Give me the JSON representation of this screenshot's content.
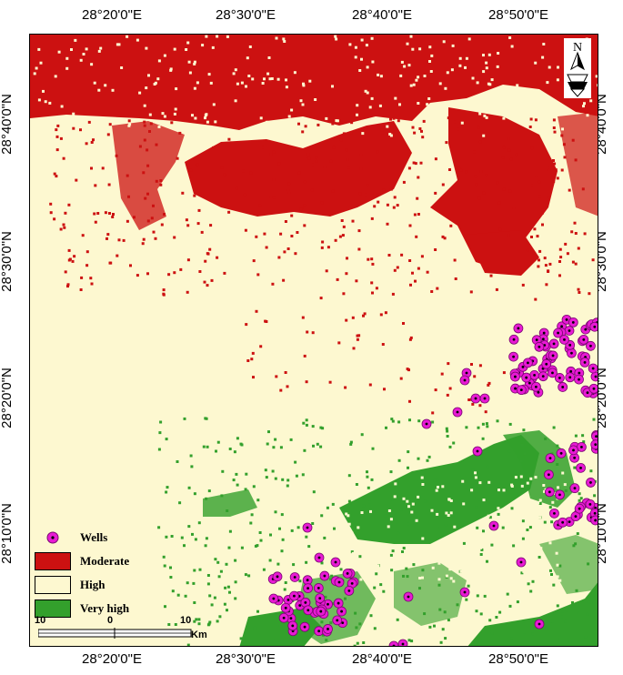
{
  "map": {
    "x_ticks": [
      "28°20'0\"E",
      "28°30'0\"E",
      "28°40'0\"E",
      "28°50'0\"E"
    ],
    "y_ticks": [
      "28°40'0\"N",
      "28°30'0\"N",
      "28°20'0\"N",
      "28°10'0\"N"
    ]
  },
  "legend": {
    "items": [
      {
        "label": "Wells",
        "type": "point",
        "color": "#e81ad4"
      },
      {
        "label": "Moderate",
        "type": "area",
        "color": "#cc1111"
      },
      {
        "label": "High",
        "type": "area",
        "color": "#fdf8d0"
      },
      {
        "label": "Very high",
        "type": "area",
        "color": "#33a02c"
      }
    ]
  },
  "scale": {
    "labels": [
      "10",
      "0",
      "10"
    ],
    "unit": "Km"
  },
  "north": {
    "label": "N"
  },
  "colors": {
    "moderate": "#cc1111",
    "high": "#fdf8d0",
    "very_high": "#33a02c",
    "wells": "#e81ad4"
  }
}
